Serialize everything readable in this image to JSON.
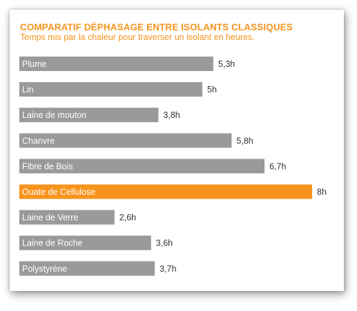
{
  "colors": {
    "bar_default": "#9a9a9a",
    "bar_highlight": "#f7941d",
    "title": "#f7941d"
  },
  "chart_data": {
    "type": "bar",
    "orientation": "horizontal",
    "title": "COMPARATIF DÉPHASAGE ENTRE ISOLANTS CLASSIQUES",
    "subtitle": "Temps mis par la chaleur pour traverser un isolant en heures.",
    "categories": [
      "Plume",
      "Lin",
      "Laine de mouton",
      "Chanvre",
      "Fibre de Bois",
      "Ouate de Cellulose",
      "Laine de Verre",
      "Laine de Roche",
      "Polystyrène"
    ],
    "values": [
      5.3,
      5,
      3.8,
      5.8,
      6.7,
      8,
      2.6,
      3.6,
      3.7
    ],
    "value_labels": [
      "5,3h",
      "5h",
      "3,8h",
      "5,8h",
      "6,7h",
      "8h",
      "2,6h",
      "3,6h",
      "3,7h"
    ],
    "highlight": "Ouate de Cellulose",
    "xlim": [
      0,
      8
    ],
    "grid": false,
    "legend": "none"
  }
}
